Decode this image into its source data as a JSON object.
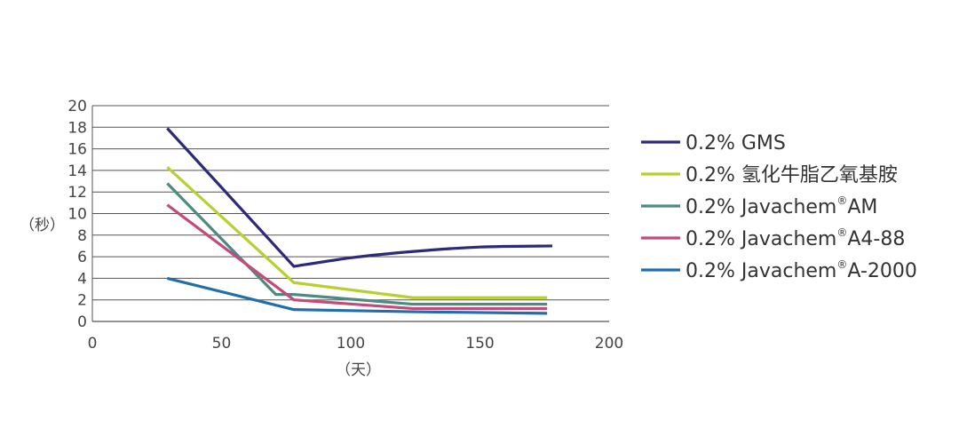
{
  "chart_data": {
    "type": "line",
    "xlabel": "（天）",
    "ylabel": "（秒）",
    "xlim": [
      0,
      200
    ],
    "ylim": [
      0,
      20
    ],
    "x_ticks": [
      "0",
      "50",
      "100",
      "150",
      "200"
    ],
    "y_ticks": [
      "0",
      "2",
      "4",
      "6",
      "8",
      "10",
      "12",
      "14",
      "16",
      "18",
      "20"
    ],
    "grid": "horizontal",
    "legend": "right",
    "series": [
      {
        "name": "0.2% GMS",
        "name_sup": "",
        "name_tail": "",
        "color": "#2e2a7a",
        "smooth": true,
        "points": [
          [
            29,
            17.9
          ],
          [
            78,
            5.1
          ],
          [
            100,
            5.9
          ],
          [
            125,
            6.5
          ],
          [
            150,
            6.9
          ],
          [
            178,
            7.0
          ]
        ]
      },
      {
        "name": "0.2% 氢化牛脂乙氧基胺",
        "name_sup": "",
        "name_tail": "",
        "color": "#b9cf2f",
        "smooth": false,
        "points": [
          [
            29,
            14.3
          ],
          [
            78,
            3.6
          ],
          [
            124,
            2.2
          ],
          [
            176,
            2.2
          ]
        ]
      },
      {
        "name": "0.2% Javachem",
        "name_sup": "®",
        "name_tail": "AM",
        "color": "#4d8b80",
        "smooth": false,
        "points": [
          [
            29,
            12.8
          ],
          [
            71,
            2.5
          ],
          [
            78,
            2.5
          ],
          [
            124,
            1.6
          ],
          [
            176,
            1.6
          ]
        ]
      },
      {
        "name": "0.2% Javachem",
        "name_sup": "®",
        "name_tail": "A4-88",
        "color": "#c44a7a",
        "smooth": false,
        "points": [
          [
            29,
            10.8
          ],
          [
            78,
            2.0
          ],
          [
            124,
            1.2
          ],
          [
            176,
            1.2
          ]
        ]
      },
      {
        "name": "0.2% Javachem",
        "name_sup": "®",
        "name_tail": "A-2000",
        "color": "#1f6fb0",
        "smooth": false,
        "points": [
          [
            29,
            4.0
          ],
          [
            78,
            1.1
          ],
          [
            124,
            0.9
          ],
          [
            176,
            0.75
          ]
        ]
      }
    ]
  }
}
